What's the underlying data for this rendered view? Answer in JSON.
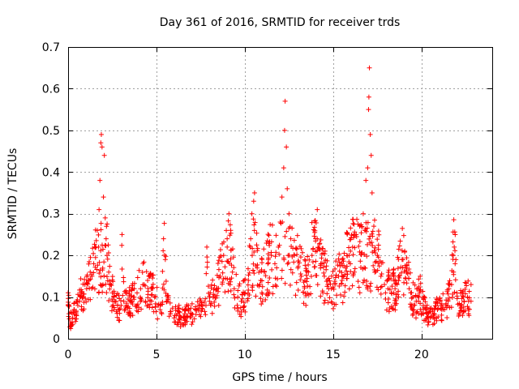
{
  "chart_data": {
    "type": "scatter",
    "title": "Day 361 of 2016, SRMTID for receiver trds",
    "xlabel": "GPS time / hours",
    "ylabel": "SRMTID / TECUs",
    "xlim": [
      0,
      24
    ],
    "ylim": [
      0,
      0.7
    ],
    "xticks": [
      0,
      5,
      10,
      15,
      20
    ],
    "xtick_labels": [
      "0",
      "5",
      "10",
      "15",
      "20"
    ],
    "yticks": [
      0,
      0.1,
      0.2,
      0.3,
      0.4,
      0.5,
      0.6,
      0.7
    ],
    "ytick_labels": [
      "0",
      "0.1",
      "0.2",
      "0.3",
      "0.4",
      "0.5",
      "0.6",
      "0.7"
    ],
    "grid": true,
    "marker": "+",
    "color": "#ff0000",
    "x_data_range": [
      0,
      22.8
    ],
    "series": [
      {
        "name": "SRMTID",
        "points": [
          [
            0.05,
            0.06
          ],
          [
            0.15,
            0.04
          ],
          [
            0.25,
            0.05
          ],
          [
            0.35,
            0.07
          ],
          [
            0.45,
            0.06
          ],
          [
            0.55,
            0.08
          ],
          [
            0.65,
            0.09
          ],
          [
            0.75,
            0.11
          ],
          [
            0.85,
            0.1
          ],
          [
            0.95,
            0.13
          ],
          [
            1.05,
            0.12
          ],
          [
            1.15,
            0.14
          ],
          [
            1.25,
            0.16
          ],
          [
            1.35,
            0.15
          ],
          [
            1.45,
            0.18
          ],
          [
            1.55,
            0.22
          ],
          [
            1.65,
            0.26
          ],
          [
            1.75,
            0.31
          ],
          [
            1.8,
            0.38
          ],
          [
            1.85,
            0.47
          ],
          [
            1.88,
            0.49
          ],
          [
            1.92,
            0.46
          ],
          [
            2.0,
            0.34
          ],
          [
            2.05,
            0.44
          ],
          [
            2.1,
            0.29
          ],
          [
            2.15,
            0.24
          ],
          [
            2.2,
            0.2
          ],
          [
            2.3,
            0.16
          ],
          [
            2.4,
            0.13
          ],
          [
            2.5,
            0.11
          ],
          [
            2.6,
            0.1
          ],
          [
            2.7,
            0.09
          ],
          [
            2.8,
            0.08
          ],
          [
            2.9,
            0.07
          ],
          [
            3.0,
            0.08
          ],
          [
            3.05,
            0.25
          ],
          [
            3.15,
            0.09
          ],
          [
            3.3,
            0.08
          ],
          [
            3.5,
            0.09
          ],
          [
            3.7,
            0.1
          ],
          [
            3.9,
            0.11
          ],
          [
            4.1,
            0.12
          ],
          [
            4.3,
            0.13
          ],
          [
            4.5,
            0.14
          ],
          [
            4.7,
            0.12
          ],
          [
            4.9,
            0.1
          ],
          [
            5.1,
            0.08
          ],
          [
            5.2,
            0.07
          ],
          [
            5.3,
            0.06
          ],
          [
            5.4,
            0.24
          ],
          [
            5.5,
            0.19
          ],
          [
            5.6,
            0.09
          ],
          [
            5.8,
            0.06
          ],
          [
            6.0,
            0.05
          ],
          [
            6.2,
            0.06
          ],
          [
            6.4,
            0.05
          ],
          [
            6.6,
            0.06
          ],
          [
            6.8,
            0.07
          ],
          [
            7.0,
            0.06
          ],
          [
            7.2,
            0.07
          ],
          [
            7.4,
            0.08
          ],
          [
            7.6,
            0.07
          ],
          [
            7.8,
            0.08
          ],
          [
            7.85,
            0.22
          ],
          [
            8.0,
            0.09
          ],
          [
            8.2,
            0.1
          ],
          [
            8.4,
            0.12
          ],
          [
            8.6,
            0.15
          ],
          [
            8.8,
            0.2
          ],
          [
            9.0,
            0.24
          ],
          [
            9.1,
            0.3
          ],
          [
            9.2,
            0.26
          ],
          [
            9.3,
            0.16
          ],
          [
            9.4,
            0.12
          ],
          [
            9.6,
            0.1
          ],
          [
            9.8,
            0.09
          ],
          [
            10.0,
            0.11
          ],
          [
            10.2,
            0.14
          ],
          [
            10.3,
            0.22
          ],
          [
            10.4,
            0.3
          ],
          [
            10.5,
            0.33
          ],
          [
            10.55,
            0.35
          ],
          [
            10.7,
            0.17
          ],
          [
            10.9,
            0.14
          ],
          [
            11.1,
            0.16
          ],
          [
            11.3,
            0.18
          ],
          [
            11.5,
            0.2
          ],
          [
            11.7,
            0.18
          ],
          [
            11.9,
            0.22
          ],
          [
            12.0,
            0.28
          ],
          [
            12.1,
            0.34
          ],
          [
            12.2,
            0.41
          ],
          [
            12.25,
            0.5
          ],
          [
            12.28,
            0.57
          ],
          [
            12.35,
            0.46
          ],
          [
            12.4,
            0.36
          ],
          [
            12.5,
            0.3
          ],
          [
            12.6,
            0.24
          ],
          [
            12.8,
            0.2
          ],
          [
            13.0,
            0.17
          ],
          [
            13.2,
            0.15
          ],
          [
            13.4,
            0.14
          ],
          [
            13.6,
            0.16
          ],
          [
            13.8,
            0.2
          ],
          [
            14.0,
            0.24
          ],
          [
            14.1,
            0.31
          ],
          [
            14.3,
            0.18
          ],
          [
            14.5,
            0.15
          ],
          [
            14.7,
            0.13
          ],
          [
            14.9,
            0.12
          ],
          [
            15.1,
            0.13
          ],
          [
            15.3,
            0.15
          ],
          [
            15.5,
            0.14
          ],
          [
            15.7,
            0.17
          ],
          [
            15.9,
            0.2
          ],
          [
            16.1,
            0.22
          ],
          [
            16.3,
            0.25
          ],
          [
            16.5,
            0.27
          ],
          [
            16.7,
            0.3
          ],
          [
            16.85,
            0.38
          ],
          [
            16.95,
            0.41
          ],
          [
            17.0,
            0.55
          ],
          [
            17.02,
            0.58
          ],
          [
            17.05,
            0.65
          ],
          [
            17.1,
            0.49
          ],
          [
            17.15,
            0.44
          ],
          [
            17.2,
            0.35
          ],
          [
            17.3,
            0.27
          ],
          [
            17.5,
            0.2
          ],
          [
            17.7,
            0.15
          ],
          [
            17.9,
            0.13
          ],
          [
            18.1,
            0.12
          ],
          [
            18.3,
            0.11
          ],
          [
            18.5,
            0.12
          ],
          [
            18.7,
            0.15
          ],
          [
            18.9,
            0.19
          ],
          [
            18.95,
            0.19
          ],
          [
            19.1,
            0.17
          ],
          [
            19.3,
            0.12
          ],
          [
            19.5,
            0.1
          ],
          [
            19.7,
            0.09
          ],
          [
            19.9,
            0.11
          ],
          [
            20.1,
            0.08
          ],
          [
            20.3,
            0.06
          ],
          [
            20.5,
            0.05
          ],
          [
            20.7,
            0.06
          ],
          [
            20.9,
            0.07
          ],
          [
            21.1,
            0.08
          ],
          [
            21.3,
            0.07
          ],
          [
            21.5,
            0.09
          ],
          [
            21.7,
            0.13
          ],
          [
            21.8,
            0.2
          ],
          [
            21.85,
            0.22
          ],
          [
            21.9,
            0.18
          ],
          [
            22.0,
            0.11
          ],
          [
            22.2,
            0.08
          ],
          [
            22.4,
            0.09
          ],
          [
            22.6,
            0.1
          ],
          [
            22.8,
            0.09
          ]
        ]
      }
    ]
  }
}
